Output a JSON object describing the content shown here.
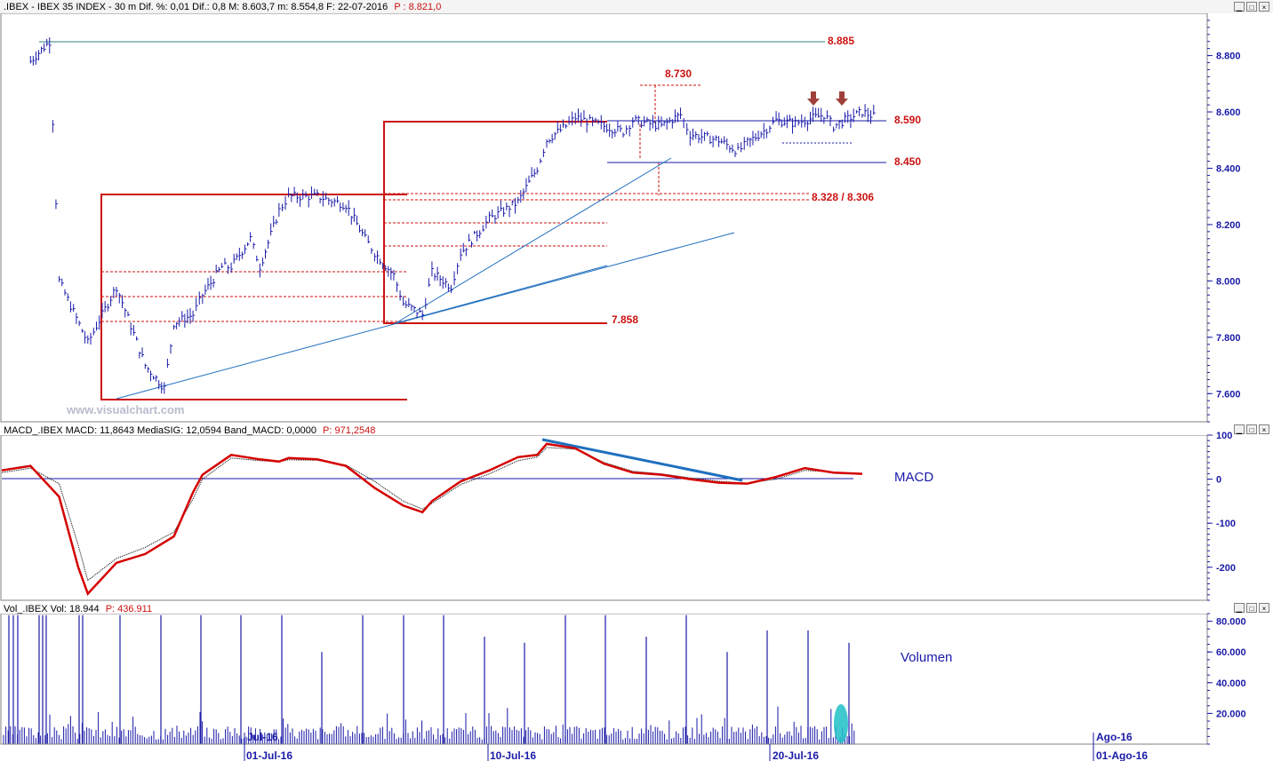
{
  "price_panel": {
    "header_prefix": ".IBEX - IBEX 35 INDEX - 30 m Dif. %: 0,01 Dif.: 0,8 M: 8.603,7 m: 8.554,8 F: 22-07-2016",
    "header_p": "P : 8.821,0",
    "watermark": "www.visualchart.com",
    "levels": {
      "l8885": "8.885",
      "l8730": "8.730",
      "l8590": "8.590",
      "l8450": "8.450",
      "l8328": "8.328 / 8.306",
      "l7858": "7.858"
    },
    "axis_ticks": [
      "8.800",
      "8.600",
      "8.400",
      "8.200",
      "8.000",
      "7.800",
      "7.600"
    ]
  },
  "macd_panel": {
    "header_prefix": "MACD_.IBEX MACD: 11,8643 MediaSIG: 12,0594 Band_MACD: 0,0000",
    "header_p": "P: 971,2548",
    "title": "MACD",
    "axis_ticks": [
      "100",
      "0",
      "-100",
      "-200"
    ]
  },
  "volume_panel": {
    "header_prefix": "Vol_.IBEX Vol: 18.944",
    "header_p": "P: 436.911",
    "title": "Volumen",
    "axis_ticks": [
      "80.000",
      "60.000",
      "40.000",
      "20.000"
    ]
  },
  "x_axis": {
    "labels": [
      "01-Jul-16",
      "10-Jul-16",
      "20-Jul-16",
      "01-Ago-16"
    ],
    "month_labels": [
      "Jul-16",
      "Ago-16"
    ]
  },
  "colors": {
    "bars": "#1a1aa8",
    "annotation_red": "#cc1111",
    "trend_blue": "#1f6fbf",
    "macd_red": "#d40000",
    "volume_highlight": "#20c0c8"
  },
  "chart_data": {
    "type": "line",
    "title": ".IBEX - IBEX 35 INDEX - 30 m",
    "xlabel": "",
    "ylabel": "",
    "x_range": [
      "2016-06-22",
      "2016-08-03"
    ],
    "price": {
      "ylim": [
        7.5,
        8.95
      ],
      "unit": "thousands",
      "close_series": [
        [
          "2016-06-23",
          8.78
        ],
        [
          "2016-06-23T16",
          8.85
        ],
        [
          "2016-06-24",
          8.0
        ],
        [
          "2016-06-25",
          7.78
        ],
        [
          "2016-06-26",
          7.98
        ],
        [
          "2016-06-27",
          7.7
        ],
        [
          "2016-06-27T16",
          7.62
        ],
        [
          "2016-06-28",
          7.85
        ],
        [
          "2016-06-28T16",
          7.88
        ],
        [
          "2016-06-29",
          7.95
        ],
        [
          "2016-06-29T16",
          8.05
        ],
        [
          "2016-06-30",
          8.05
        ],
        [
          "2016-06-30T16",
          8.15
        ],
        [
          "2016-07-01",
          8.05
        ],
        [
          "2016-07-01T16",
          8.25
        ],
        [
          "2016-07-02",
          8.3
        ],
        [
          "2016-07-03",
          8.3
        ],
        [
          "2016-07-04",
          8.27
        ],
        [
          "2016-07-04T16",
          8.15
        ],
        [
          "2016-07-05",
          8.1
        ],
        [
          "2016-07-05T16",
          8.02
        ],
        [
          "2016-07-06",
          7.92
        ],
        [
          "2016-07-06T16",
          7.88
        ],
        [
          "2016-07-07",
          8.03
        ],
        [
          "2016-07-07T16",
          7.98
        ],
        [
          "2016-07-08",
          8.1
        ],
        [
          "2016-07-08T16",
          8.18
        ],
        [
          "2016-07-09",
          8.22
        ],
        [
          "2016-07-10",
          8.28
        ],
        [
          "2016-07-10T16",
          8.4
        ],
        [
          "2016-07-11",
          8.5
        ],
        [
          "2016-07-11T16",
          8.55
        ],
        [
          "2016-07-12",
          8.58
        ],
        [
          "2016-07-13",
          8.55
        ],
        [
          "2016-07-13T16",
          8.53
        ],
        [
          "2016-07-14",
          8.57
        ],
        [
          "2016-07-15",
          8.55
        ],
        [
          "2016-07-15T16",
          8.59
        ],
        [
          "2016-07-16",
          8.52
        ],
        [
          "2016-07-17",
          8.5
        ],
        [
          "2016-07-17T16",
          8.46
        ],
        [
          "2016-07-18",
          8.49
        ],
        [
          "2016-07-18T16",
          8.54
        ],
        [
          "2016-07-19",
          8.57
        ],
        [
          "2016-07-19T16",
          8.56
        ],
        [
          "2016-07-20",
          8.57
        ],
        [
          "2016-07-20T16",
          8.59
        ],
        [
          "2016-07-21",
          8.55
        ],
        [
          "2016-07-22",
          8.6
        ],
        [
          "2016-07-22T12",
          8.58
        ]
      ],
      "annotated_levels": [
        8.885,
        8.73,
        8.59,
        8.45,
        8.328,
        8.306,
        7.858
      ]
    },
    "macd": {
      "ylim": [
        -275,
        100
      ],
      "series": [
        {
          "values": [
            [
              "2016-06-22",
              20
            ],
            [
              "2016-06-23",
              30
            ],
            [
              "2016-06-24",
              -40
            ],
            [
              "2016-06-24T16",
              -200
            ],
            [
              "2016-06-25",
              -260
            ],
            [
              "2016-06-26",
              -190
            ],
            [
              "2016-06-27",
              -170
            ],
            [
              "2016-06-28",
              -130
            ],
            [
              "2016-06-28T16",
              -30
            ],
            [
              "2016-06-29",
              10
            ],
            [
              "2016-06-30",
              55
            ],
            [
              "2016-07-01",
              45
            ],
            [
              "2016-07-01T16",
              40
            ],
            [
              "2016-07-02",
              48
            ],
            [
              "2016-07-03",
              45
            ],
            [
              "2016-07-04",
              30
            ],
            [
              "2016-07-05",
              -20
            ],
            [
              "2016-07-06",
              -60
            ],
            [
              "2016-07-06T16",
              -75
            ],
            [
              "2016-07-07",
              -50
            ],
            [
              "2016-07-08",
              -5
            ],
            [
              "2016-07-09",
              20
            ],
            [
              "2016-07-10",
              50
            ],
            [
              "2016-07-10T16",
              55
            ],
            [
              "2016-07-11",
              80
            ],
            [
              "2016-07-12",
              70
            ],
            [
              "2016-07-13",
              35
            ],
            [
              "2016-07-14",
              15
            ],
            [
              "2016-07-15",
              10
            ],
            [
              "2016-07-16",
              0
            ],
            [
              "2016-07-17",
              -8
            ],
            [
              "2016-07-18",
              -10
            ],
            [
              "2016-07-19",
              5
            ],
            [
              "2016-07-20",
              25
            ],
            [
              "2016-07-21",
              15
            ],
            [
              "2016-07-22",
              12
            ]
          ]
        },
        {
          "values": [
            [
              "2016-06-22",
              15
            ],
            [
              "2016-06-23",
              25
            ],
            [
              "2016-06-24",
              -10
            ],
            [
              "2016-06-24T16",
              -150
            ],
            [
              "2016-06-25",
              -230
            ],
            [
              "2016-06-26",
              -180
            ],
            [
              "2016-06-27",
              -155
            ],
            [
              "2016-06-28",
              -120
            ],
            [
              "2016-06-28T16",
              -45
            ],
            [
              "2016-06-29",
              0
            ],
            [
              "2016-06-30",
              48
            ],
            [
              "2016-07-01",
              42
            ],
            [
              "2016-07-01T16",
              40
            ],
            [
              "2016-07-02",
              44
            ],
            [
              "2016-07-03",
              43
            ],
            [
              "2016-07-04",
              32
            ],
            [
              "2016-07-05",
              -5
            ],
            [
              "2016-07-06",
              -50
            ],
            [
              "2016-07-06T16",
              -68
            ],
            [
              "2016-07-07",
              -55
            ],
            [
              "2016-07-08",
              -12
            ],
            [
              "2016-07-09",
              12
            ],
            [
              "2016-07-10",
              42
            ],
            [
              "2016-07-10T16",
              50
            ],
            [
              "2016-07-11",
              72
            ],
            [
              "2016-07-12",
              68
            ],
            [
              "2016-07-13",
              38
            ],
            [
              "2016-07-14",
              18
            ],
            [
              "2016-07-15",
              12
            ],
            [
              "2016-07-16",
              3
            ],
            [
              "2016-07-17",
              -5
            ],
            [
              "2016-07-18",
              -9
            ],
            [
              "2016-07-19",
              0
            ],
            [
              "2016-07-20",
              20
            ],
            [
              "2016-07-21",
              16
            ],
            [
              "2016-07-22",
              12
            ]
          ]
        }
      ]
    },
    "volume": {
      "ylim": [
        0,
        85000
      ]
    }
  }
}
